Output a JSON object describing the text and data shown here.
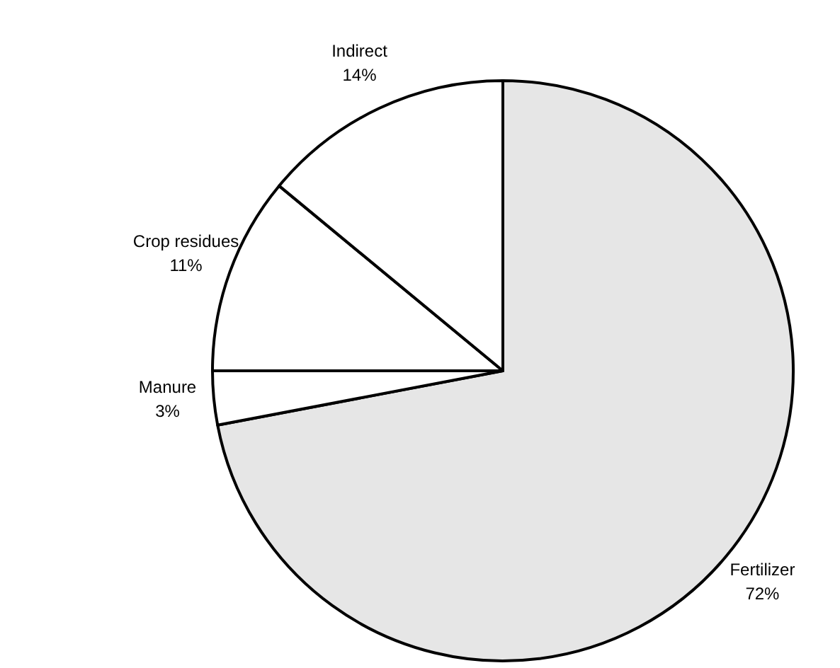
{
  "chart_data": {
    "type": "pie",
    "categories": [
      "Fertilizer",
      "Manure",
      "Crop residues",
      "Indirect"
    ],
    "values": [
      72,
      3,
      11,
      14
    ],
    "colors": [
      "#e6e6e6",
      "#ffffff",
      "#ffffff",
      "#ffffff"
    ],
    "value_labels": [
      "72%",
      "3%",
      "11%",
      "14%"
    ]
  }
}
